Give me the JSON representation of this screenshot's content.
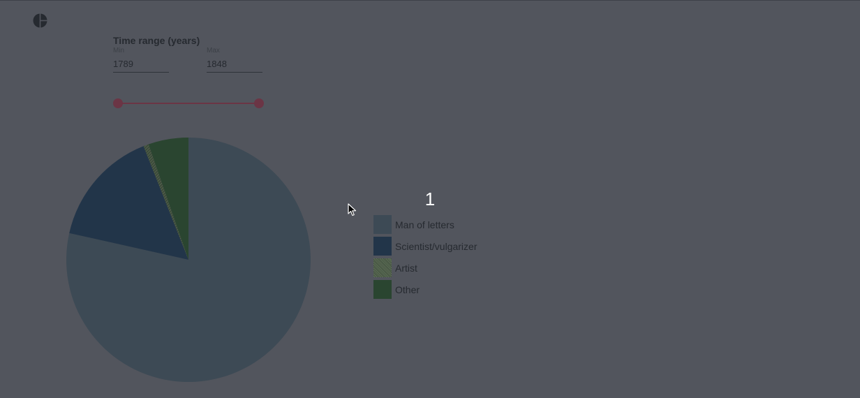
{
  "app": {
    "logo_icon": "pie-chart-icon"
  },
  "time_range": {
    "title": "Time range (years)",
    "min_label": "Min",
    "min_value": "1789",
    "max_label": "Max",
    "max_value": "1848",
    "slider_low": 0,
    "slider_high": 1,
    "accent": "#6b3545"
  },
  "selection_count": "1",
  "chart_data": {
    "type": "pie",
    "categories": [
      "Man of letters",
      "Scientist/vulgarizer",
      "Artist",
      "Other"
    ],
    "values": [
      78.5,
      15.5,
      0.7,
      5.3
    ],
    "colors": [
      "#3d4a55",
      "#223549",
      "#3c5438",
      "#2a4530"
    ],
    "legend_position": "right"
  }
}
